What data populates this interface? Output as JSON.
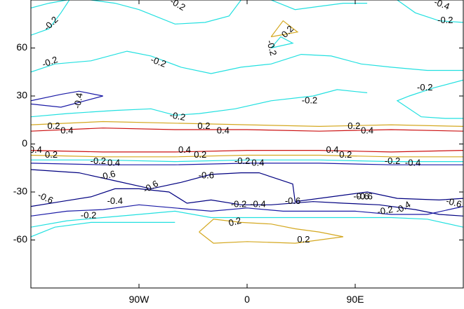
{
  "chart_data": {
    "type": "contour",
    "title": "",
    "xlabel": "",
    "ylabel": "",
    "x_range_deg": [
      -180,
      180
    ],
    "y_range_deg": [
      -90,
      90
    ],
    "x_ticks": [
      {
        "value": -90,
        "label": "90W"
      },
      {
        "value": 0,
        "label": "0"
      },
      {
        "value": 90,
        "label": "90E"
      }
    ],
    "y_ticks": [
      {
        "value": 60,
        "label": "60"
      },
      {
        "value": 30,
        "label": "30"
      },
      {
        "value": 0,
        "label": "0"
      },
      {
        "value": -30,
        "label": "-30"
      },
      {
        "value": -60,
        "label": "-60"
      }
    ],
    "grid": false,
    "level_colors": {
      "-0.6": "#000080",
      "-0.4": "#1a1aa6",
      "-0.2": "#22e0e0",
      "0.2": "#d4a820",
      "0.4": "#cc1111"
    },
    "contours": [
      {
        "level": -0.2,
        "points": [
          [
            -180,
            85
          ],
          [
            -165,
            88
          ],
          [
            -150,
            90
          ]
        ]
      },
      {
        "level": -0.2,
        "points": [
          [
            -130,
            90
          ],
          [
            -110,
            88
          ],
          [
            -90,
            84
          ],
          [
            -60,
            75
          ],
          [
            -35,
            76
          ],
          [
            -15,
            80
          ],
          [
            -5,
            90
          ]
        ]
      },
      {
        "level": -0.2,
        "points": [
          [
            20,
            90
          ],
          [
            40,
            84
          ],
          [
            60,
            86
          ],
          [
            80,
            88
          ],
          [
            100,
            88
          ]
        ]
      },
      {
        "level": -0.2,
        "points": [
          [
            125,
            90
          ],
          [
            140,
            82
          ],
          [
            160,
            77
          ],
          [
            180,
            76
          ]
        ]
      },
      {
        "level": -0.2,
        "points": [
          [
            -180,
            68
          ],
          [
            -165,
            72
          ],
          [
            -155,
            82
          ],
          [
            -148,
            90
          ]
        ]
      },
      {
        "level": -0.2,
        "points": [
          [
            -180,
            45
          ],
          [
            -160,
            50
          ],
          [
            -130,
            52
          ],
          [
            -100,
            58
          ],
          [
            -80,
            55
          ],
          [
            -55,
            48
          ],
          [
            -30,
            44
          ],
          [
            -5,
            48
          ],
          [
            20,
            50
          ],
          [
            45,
            56
          ],
          [
            70,
            55
          ],
          [
            95,
            50
          ],
          [
            120,
            48
          ],
          [
            150,
            46
          ],
          [
            180,
            46
          ]
        ]
      },
      {
        "level": -0.2,
        "points": [
          [
            20,
            60
          ],
          [
            28,
            67
          ],
          [
            38,
            63
          ],
          [
            20,
            60
          ]
        ]
      },
      {
        "level": -0.2,
        "points": [
          [
            180,
            40
          ],
          [
            155,
            35
          ],
          [
            135,
            30
          ],
          [
            125,
            27
          ],
          [
            145,
            17
          ],
          [
            165,
            16
          ],
          [
            180,
            16
          ]
        ]
      },
      {
        "level": -0.2,
        "points": [
          [
            -180,
            17
          ],
          [
            -150,
            19
          ],
          [
            -110,
            21
          ],
          [
            -80,
            22
          ],
          [
            -60,
            18
          ],
          [
            -40,
            19
          ],
          [
            -10,
            22
          ],
          [
            20,
            27
          ],
          [
            55,
            30
          ],
          [
            75,
            34
          ],
          [
            100,
            32
          ]
        ]
      },
      {
        "level": 0.2,
        "points": [
          [
            -180,
            12
          ],
          [
            -120,
            14
          ],
          [
            -60,
            13
          ],
          [
            0,
            12
          ],
          [
            60,
            11
          ],
          [
            120,
            12
          ],
          [
            180,
            11
          ]
        ]
      },
      {
        "level": 0.4,
        "points": [
          [
            -180,
            8
          ],
          [
            -120,
            10
          ],
          [
            -60,
            9
          ],
          [
            0,
            9
          ],
          [
            60,
            8
          ],
          [
            120,
            9
          ],
          [
            180,
            8
          ]
        ]
      },
      {
        "level": 0.4,
        "points": [
          [
            -180,
            -4
          ],
          [
            -120,
            -5
          ],
          [
            -60,
            -5
          ],
          [
            0,
            -4
          ],
          [
            60,
            -4
          ],
          [
            120,
            -5
          ],
          [
            180,
            -4
          ]
        ]
      },
      {
        "level": 0.2,
        "points": [
          [
            -180,
            -7
          ],
          [
            -120,
            -8
          ],
          [
            -60,
            -8
          ],
          [
            0,
            -7
          ],
          [
            60,
            -7
          ],
          [
            120,
            -8
          ],
          [
            180,
            -8
          ]
        ]
      },
      {
        "level": -0.2,
        "points": [
          [
            -180,
            -10
          ],
          [
            -120,
            -10
          ],
          [
            -60,
            -11
          ],
          [
            0,
            -10
          ],
          [
            60,
            -10
          ],
          [
            120,
            -11
          ],
          [
            180,
            -11
          ]
        ]
      },
      {
        "level": -0.4,
        "points": [
          [
            -180,
            -12
          ],
          [
            -120,
            -13
          ],
          [
            -60,
            -13
          ],
          [
            0,
            -12
          ],
          [
            60,
            -12
          ],
          [
            120,
            -13
          ],
          [
            180,
            -13
          ]
        ]
      },
      {
        "level": -0.6,
        "points": [
          [
            -180,
            -16
          ],
          [
            -140,
            -18
          ],
          [
            -110,
            -23
          ],
          [
            -80,
            -28
          ],
          [
            -55,
            -24
          ],
          [
            -30,
            -19
          ],
          [
            -5,
            -18
          ],
          [
            10,
            -18
          ],
          [
            38,
            -25
          ],
          [
            40,
            -36
          ],
          [
            70,
            -33
          ],
          [
            100,
            -30
          ],
          [
            125,
            -34
          ],
          [
            160,
            -35
          ],
          [
            180,
            -34
          ]
        ]
      },
      {
        "level": -0.6,
        "points": [
          [
            -180,
            -39
          ],
          [
            -155,
            -36
          ],
          [
            -130,
            -33
          ],
          [
            -110,
            -28
          ],
          [
            -90,
            -28
          ],
          [
            -65,
            -30
          ],
          [
            -50,
            -37
          ],
          [
            -30,
            -35
          ],
          [
            -5,
            -38
          ],
          [
            20,
            -38
          ],
          [
            55,
            -36
          ],
          [
            80,
            -37
          ],
          [
            110,
            -38
          ],
          [
            140,
            -41
          ],
          [
            160,
            -44
          ],
          [
            180,
            -45
          ]
        ]
      },
      {
        "level": -0.4,
        "points": [
          [
            -180,
            -45
          ],
          [
            -150,
            -42
          ],
          [
            -120,
            -41
          ],
          [
            -90,
            -38
          ],
          [
            -60,
            -40
          ],
          [
            -30,
            -42
          ],
          [
            0,
            -40
          ],
          [
            30,
            -42
          ],
          [
            60,
            -42
          ],
          [
            90,
            -42
          ],
          [
            120,
            -44
          ],
          [
            150,
            -44
          ],
          [
            180,
            -39
          ]
        ]
      },
      {
        "level": -0.2,
        "points": [
          [
            -180,
            -52
          ],
          [
            -150,
            -48
          ],
          [
            -120,
            -46
          ],
          [
            -90,
            -44
          ],
          [
            -60,
            -42
          ],
          [
            -30,
            -46
          ],
          [
            0,
            -46
          ],
          [
            40,
            -46
          ],
          [
            80,
            -46
          ],
          [
            120,
            -46
          ],
          [
            150,
            -47
          ],
          [
            180,
            -52
          ]
        ]
      },
      {
        "level": -0.2,
        "points": [
          [
            -180,
            -58
          ],
          [
            -160,
            -52
          ],
          [
            -130,
            -49
          ],
          [
            -100,
            -49
          ],
          [
            -60,
            -49
          ]
        ]
      },
      {
        "level": -0.4,
        "points": [
          [
            -180,
            27
          ],
          [
            -155,
            31
          ],
          [
            -140,
            33
          ],
          [
            -120,
            30
          ],
          [
            -155,
            23
          ],
          [
            -180,
            25
          ]
        ]
      },
      {
        "level": 0.2,
        "points": [
          [
            20,
            67
          ],
          [
            30,
            77
          ],
          [
            42,
            70
          ],
          [
            20,
            67
          ]
        ]
      },
      {
        "level": 0.2,
        "points": [
          [
            -40,
            -55
          ],
          [
            -28,
            -47
          ],
          [
            -5,
            -49
          ],
          [
            20,
            -50
          ],
          [
            40,
            -53
          ],
          [
            60,
            -55
          ],
          [
            80,
            -58
          ],
          [
            40,
            -62
          ],
          [
            0,
            -61
          ],
          [
            -28,
            -62
          ],
          [
            -40,
            -55
          ]
        ]
      }
    ],
    "contour_labels": [
      {
        "text": "-0.2",
        "x": -58,
        "y": 87,
        "rotate": 30
      },
      {
        "text": "-0.4",
        "x": 162,
        "y": 87,
        "rotate": 20
      },
      {
        "text": "-0.2",
        "x": 165,
        "y": 77,
        "rotate": 0
      },
      {
        "text": "-0.2",
        "x": -163,
        "y": 75,
        "rotate": -45
      },
      {
        "text": "0.2",
        "x": 34,
        "y": 70,
        "rotate": -45
      },
      {
        "text": "-0.2",
        "x": 20,
        "y": 60,
        "rotate": 75
      },
      {
        "text": "-0.2",
        "x": -164,
        "y": 51,
        "rotate": -20
      },
      {
        "text": "-0.2",
        "x": -74,
        "y": 51,
        "rotate": 20
      },
      {
        "text": "-0.4",
        "x": -140,
        "y": 27,
        "rotate": -80
      },
      {
        "text": "-0.2",
        "x": 148,
        "y": 35,
        "rotate": 0
      },
      {
        "text": "-0.2",
        "x": 52,
        "y": 27,
        "rotate": 0
      },
      {
        "text": "-0.2",
        "x": -58,
        "y": 17,
        "rotate": 10
      },
      {
        "text": "0.2",
        "x": -161,
        "y": 11,
        "rotate": 0
      },
      {
        "text": "0.4",
        "x": -150,
        "y": 8,
        "rotate": 0
      },
      {
        "text": "0.2",
        "x": -36,
        "y": 11,
        "rotate": 0
      },
      {
        "text": "0.4",
        "x": -20,
        "y": 8,
        "rotate": 0
      },
      {
        "text": "0.2",
        "x": 89,
        "y": 11,
        "rotate": 0
      },
      {
        "text": "0.4",
        "x": 100,
        "y": 8,
        "rotate": 0
      },
      {
        "text": "0.4",
        "x": -176,
        "y": -4,
        "rotate": 0
      },
      {
        "text": "0.2",
        "x": -163,
        "y": -7,
        "rotate": 0
      },
      {
        "text": "0.4",
        "x": -52,
        "y": -4,
        "rotate": 0
      },
      {
        "text": "0.2",
        "x": -39,
        "y": -7,
        "rotate": 0
      },
      {
        "text": "0.4",
        "x": 71,
        "y": -4,
        "rotate": 0
      },
      {
        "text": "0.2",
        "x": 82,
        "y": -7,
        "rotate": 0
      },
      {
        "text": "-0.2",
        "x": -124,
        "y": -11,
        "rotate": 0
      },
      {
        "text": "0.4",
        "x": -111,
        "y": -12,
        "rotate": 0
      },
      {
        "text": "-0.2",
        "x": -4,
        "y": -11,
        "rotate": 0
      },
      {
        "text": "0.4",
        "x": 9,
        "y": -12,
        "rotate": 0
      },
      {
        "text": "-0.2",
        "x": 121,
        "y": -11,
        "rotate": 0
      },
      {
        "text": "-0.4",
        "x": 138,
        "y": -12,
        "rotate": 0
      },
      {
        "text": "-0.6",
        "x": -116,
        "y": -20,
        "rotate": -15
      },
      {
        "text": "-0.6",
        "x": -34,
        "y": -20,
        "rotate": 0
      },
      {
        "text": "-0.6",
        "x": -80,
        "y": -27,
        "rotate": -30
      },
      {
        "text": "-0.6",
        "x": -168,
        "y": -34,
        "rotate": 25
      },
      {
        "text": "-0.4",
        "x": -110,
        "y": -36,
        "rotate": 0
      },
      {
        "text": "-0.2",
        "x": -7,
        "y": -38,
        "rotate": 0
      },
      {
        "text": "-0.4",
        "x": 9,
        "y": -38,
        "rotate": 0
      },
      {
        "text": "-0.6",
        "x": 38,
        "y": -36,
        "rotate": 0
      },
      {
        "text": "-0.6",
        "x": 95,
        "y": -33,
        "rotate": 0
      },
      {
        "text": "-0.6",
        "x": 98,
        "y": -33,
        "rotate": 0
      },
      {
        "text": "-0.4",
        "x": 130,
        "y": -40,
        "rotate": -30
      },
      {
        "text": "-0.2",
        "x": 115,
        "y": -42,
        "rotate": -10
      },
      {
        "text": "-0.6",
        "x": 172,
        "y": -37,
        "rotate": 15
      },
      {
        "text": "-0.2",
        "x": -132,
        "y": -45,
        "rotate": 0
      },
      {
        "text": "0.2",
        "x": -10,
        "y": -49,
        "rotate": -15
      },
      {
        "text": "0.2",
        "x": 47,
        "y": -60,
        "rotate": 0
      }
    ]
  }
}
